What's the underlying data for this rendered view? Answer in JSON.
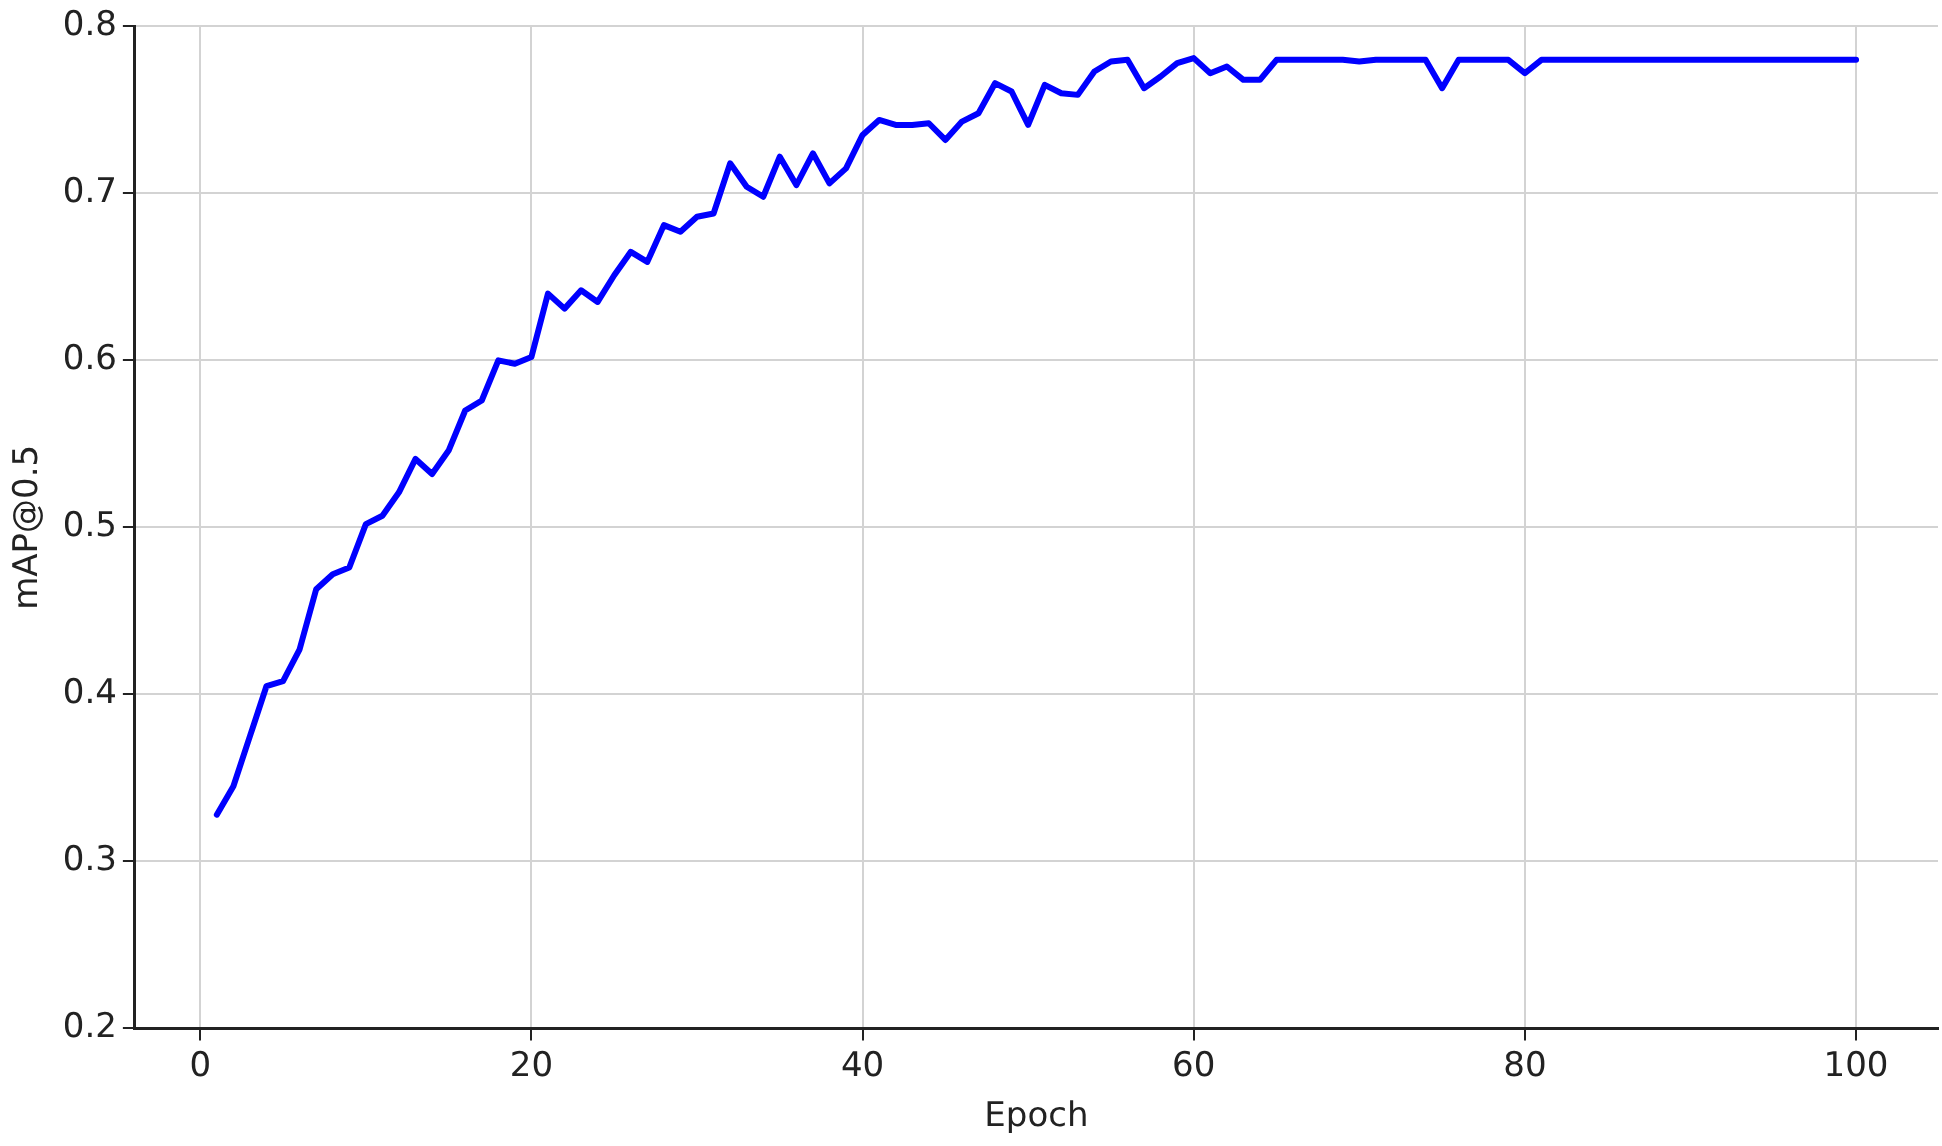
{
  "chart_data": {
    "type": "line",
    "xlabel": "Epoch",
    "ylabel": "mAP@0.5",
    "x": [
      1,
      2,
      3,
      4,
      5,
      6,
      7,
      8,
      9,
      10,
      11,
      12,
      13,
      14,
      15,
      16,
      17,
      18,
      19,
      20,
      21,
      22,
      23,
      24,
      25,
      26,
      27,
      28,
      29,
      30,
      31,
      32,
      33,
      34,
      35,
      36,
      37,
      38,
      39,
      40,
      41,
      42,
      43,
      44,
      45,
      46,
      47,
      48,
      49,
      50,
      51,
      52,
      53,
      54,
      55,
      56,
      57,
      58,
      59,
      60,
      61,
      62,
      63,
      64,
      65,
      66,
      67,
      68,
      69,
      70,
      71,
      72,
      73,
      74,
      75,
      76,
      77,
      78,
      79,
      80,
      81,
      82,
      83,
      84,
      85,
      86,
      87,
      88,
      89,
      90,
      91,
      92,
      93,
      94,
      95,
      96,
      97,
      98,
      99,
      100
    ],
    "series": [
      {
        "color": "#0000ff",
        "values": [
          0.328,
          0.345,
          0.375,
          0.405,
          0.408,
          0.427,
          0.463,
          0.472,
          0.476,
          0.502,
          0.507,
          0.521,
          0.541,
          0.532,
          0.546,
          0.57,
          0.576,
          0.6,
          0.598,
          0.602,
          0.64,
          0.631,
          0.642,
          0.635,
          0.651,
          0.665,
          0.659,
          0.681,
          0.677,
          0.686,
          0.688,
          0.718,
          0.704,
          0.698,
          0.722,
          0.705,
          0.724,
          0.706,
          0.715,
          0.735,
          0.744,
          0.741,
          0.741,
          0.742,
          0.732,
          0.743,
          0.748,
          0.766,
          0.761,
          0.741,
          0.765,
          0.76,
          0.759,
          0.773,
          0.779,
          0.78,
          0.763,
          0.77,
          0.778,
          0.781,
          0.772,
          0.776,
          0.768,
          0.768,
          0.78,
          0.78,
          0.78,
          0.78,
          0.78,
          0.779,
          0.78,
          0.78,
          0.78,
          0.78,
          0.763,
          0.78,
          0.78,
          0.78,
          0.78,
          0.772,
          0.78,
          0.78,
          0.78,
          0.78,
          0.78,
          0.78,
          0.78,
          0.78,
          0.78,
          0.78,
          0.78,
          0.78,
          0.78,
          0.78,
          0.78,
          0.78,
          0.78,
          0.78,
          0.78,
          0.78
        ]
      }
    ],
    "xlim": [
      -3.95,
      104.95
    ],
    "xticks": [
      0,
      20,
      40,
      60,
      80,
      100
    ],
    "ylim": [
      0.2,
      0.8
    ],
    "yticks": [
      0.2,
      0.3,
      0.4,
      0.5,
      0.6,
      0.7,
      0.8
    ],
    "grid": true,
    "marker": "none",
    "line_style": "solid",
    "legend": false
  }
}
